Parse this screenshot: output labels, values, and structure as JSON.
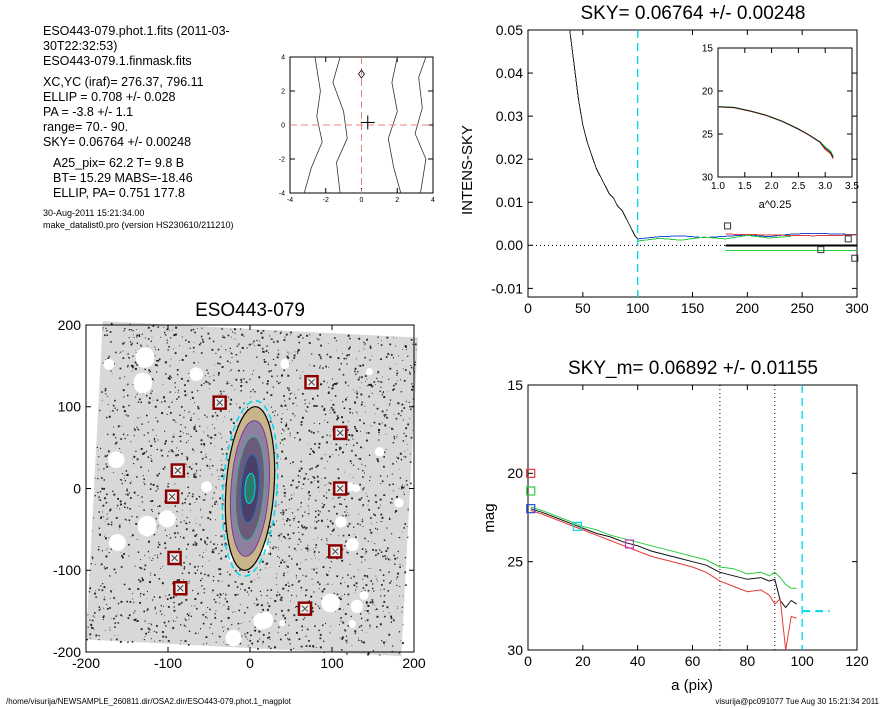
{
  "info": {
    "line1": "ESO443-079.phot.1.fits  (2011-03-30T22:32:53)",
    "line2": "ESO443-079.1.finmask.fits",
    "line3": "XC,YC (iraf)=   276.37, 796.11",
    "line4": "ELLIP = 0.708 +/- 0.028",
    "line5": "PA    =  -3.8 +/-   1.1",
    "line6": "range=   70.-   90.",
    "line7": "SKY= 0.06764 +/- 0.00248",
    "line8": "A25_pix= 62.2   T= 9.8  B",
    "line9": "BT=  15.29   MABS=-18.46",
    "line10": "ELLIP, PA= 0.751   177.8",
    "line11": "30-Aug-2011 15:21:34.00",
    "line12": "make_datalist0.pro (version HS230610/211210)"
  },
  "footer": {
    "left": "/home/visurija/NEWSAMPLE_260811.dir/OSA2.dir/ESO443-079.phot.1_magplot",
    "right": "visurija@pc091077  Tue Aug 30 15:21:34 2011"
  },
  "colors": {
    "cyan": "#00d8e8",
    "red": "#e53935",
    "green": "#2ecc40",
    "blue": "#1e4fd8",
    "magenta": "#c040c0",
    "darkred": "#8b0000",
    "salmon": "#f08080"
  },
  "chart_data": [
    {
      "type": "line",
      "panel": "center-contour",
      "xticks": [
        "-4",
        "-2",
        "0",
        "2",
        "4"
      ],
      "yticks": [
        "-4",
        "-2",
        "0",
        "2",
        "4"
      ],
      "xlim": [
        -4,
        4
      ],
      "ylim": [
        -4,
        4
      ]
    },
    {
      "type": "line",
      "panel": "sky-profile",
      "title": "SKY= 0.06764 +/- 0.00248",
      "ylabel": "INTENS-SKY",
      "xlim": [
        0,
        300
      ],
      "ylim": [
        -0.012,
        0.05
      ],
      "xticks": [
        "0",
        "50",
        "100",
        "150",
        "200",
        "250",
        "300"
      ],
      "yticks": [
        "-0.01",
        "0.00",
        "0.01",
        "0.02",
        "0.03",
        "0.04",
        "0.05"
      ],
      "sky_radius": 100,
      "series": [
        {
          "color": "black",
          "x": [
            38,
            42,
            46,
            50,
            54,
            58,
            62,
            66,
            70,
            74,
            78,
            82,
            86,
            90,
            94,
            98,
            100
          ],
          "y": [
            0.05,
            0.042,
            0.034,
            0.028,
            0.024,
            0.021,
            0.018,
            0.016,
            0.014,
            0.012,
            0.011,
            0.009,
            0.008,
            0.006,
            0.004,
            0.002,
            0.0015
          ]
        },
        {
          "color": "blue",
          "x": [
            100,
            120,
            140,
            160,
            180,
            200,
            220,
            240,
            260,
            300
          ],
          "y": [
            0.0015,
            0.002,
            0.0022,
            0.0018,
            0.0021,
            0.0024,
            0.002,
            0.0026,
            0.0028,
            0.0025
          ]
        },
        {
          "color": "green",
          "x": [
            100,
            120,
            140,
            160,
            180,
            200,
            220,
            240
          ],
          "y": [
            0.001,
            0.0016,
            0.0012,
            0.0019,
            0.0015,
            0.0023,
            0.0017,
            0.0021
          ]
        },
        {
          "color": "red",
          "x": [
            180,
            220,
            260,
            300
          ],
          "y": [
            0.0026,
            0.0024,
            0.0022,
            0.0024
          ]
        },
        {
          "color": "black-thick",
          "x": [
            180,
            300
          ],
          "y": [
            0.0,
            0.0
          ]
        },
        {
          "color": "green-flat",
          "x": [
            180,
            300
          ],
          "y": [
            -0.0012,
            -0.0012
          ]
        }
      ],
      "markers": [
        {
          "x": 182,
          "y": 0.0045
        },
        {
          "x": 267,
          "y": -0.001
        },
        {
          "x": 292,
          "y": 0.0015
        },
        {
          "x": 298,
          "y": -0.003
        }
      ],
      "inset": {
        "xlabel": "a^0.25",
        "xlim": [
          1.0,
          3.5
        ],
        "ylim": [
          30,
          15
        ],
        "xticks": [
          "1.0",
          "1.5",
          "2.0",
          "2.5",
          "3.0",
          "3.5"
        ],
        "yticks": [
          "15",
          "20",
          "25",
          "30"
        ],
        "x": [
          1.0,
          1.3,
          1.6,
          1.9,
          2.2,
          2.5,
          2.7,
          2.9,
          3.0,
          3.1,
          3.15
        ],
        "y": [
          21.8,
          21.9,
          22.3,
          22.8,
          23.5,
          24.4,
          25.1,
          25.9,
          26.5,
          27.0,
          27.6
        ]
      }
    },
    {
      "type": "heatmap",
      "panel": "galaxy-image",
      "title": "ESO443-079",
      "xlim": [
        -200,
        200
      ],
      "ylim": [
        -200,
        200
      ],
      "xticks": [
        "-200",
        "-100",
        "0",
        "100",
        "200"
      ],
      "yticks": [
        "-200",
        "-100",
        "0",
        "100",
        "200"
      ],
      "masked_stars": [
        [
          75,
          130
        ],
        [
          -37,
          105
        ],
        [
          110,
          68
        ],
        [
          -88,
          22
        ],
        [
          -95,
          -10
        ],
        [
          110,
          0
        ],
        [
          -92,
          -85
        ],
        [
          104,
          -77
        ],
        [
          -85,
          -122
        ],
        [
          67,
          -147
        ]
      ]
    },
    {
      "type": "line",
      "panel": "magnitude-profile",
      "title": "SKY_m=  0.06892 +/- 0.01155",
      "xlabel": "a (pix)",
      "ylabel": "mag",
      "xlim": [
        0,
        120
      ],
      "ylim": [
        30,
        15
      ],
      "xticks": [
        "0",
        "20",
        "40",
        "60",
        "80",
        "100",
        "120"
      ],
      "yticks": [
        "15",
        "20",
        "25",
        "30"
      ],
      "range_lines": [
        70,
        90
      ],
      "sky_radius": 100,
      "x": [
        1,
        5,
        10,
        15,
        20,
        25,
        30,
        35,
        40,
        45,
        50,
        55,
        60,
        65,
        70,
        75,
        80,
        85,
        88,
        90,
        92,
        94,
        96,
        98
      ],
      "series": [
        {
          "name": "black",
          "y": [
            22.0,
            22.2,
            22.5,
            22.8,
            23.1,
            23.4,
            23.6,
            23.9,
            24.1,
            24.4,
            24.6,
            24.8,
            25.0,
            25.2,
            25.6,
            25.8,
            26.0,
            25.9,
            26.1,
            26.0,
            27.2,
            27.6,
            27.2,
            27.4
          ]
        },
        {
          "name": "red",
          "y": [
            22.1,
            22.3,
            22.6,
            22.9,
            23.2,
            23.5,
            23.8,
            24.1,
            24.4,
            24.7,
            24.9,
            25.1,
            25.3,
            25.6,
            26.1,
            26.4,
            26.7,
            26.6,
            26.9,
            27.4,
            27.1,
            30.0,
            28.1,
            28.2
          ]
        },
        {
          "name": "green",
          "y": [
            21.9,
            22.1,
            22.4,
            22.7,
            23.0,
            23.2,
            23.5,
            23.7,
            23.9,
            24.1,
            24.3,
            24.5,
            24.7,
            24.9,
            25.3,
            25.4,
            25.7,
            25.6,
            25.8,
            25.6,
            25.9,
            26.3,
            26.5,
            26.5
          ]
        }
      ],
      "sky_level": 27.8,
      "squares": [
        {
          "x": 1,
          "y": 20.0,
          "c": "red"
        },
        {
          "x": 1,
          "y": 21.0,
          "c": "green"
        },
        {
          "x": 1,
          "y": 22.0,
          "c": "blue"
        },
        {
          "x": 18,
          "y": 23.0,
          "c": "cyan"
        },
        {
          "x": 37,
          "y": 24.0,
          "c": "magenta"
        }
      ]
    }
  ]
}
